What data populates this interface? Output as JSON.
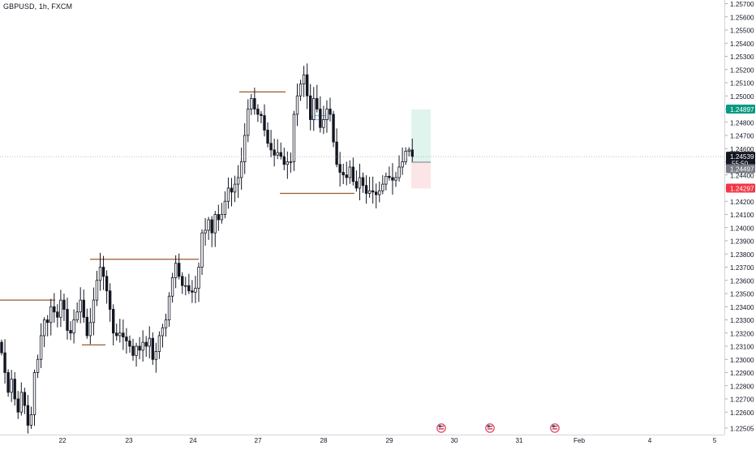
{
  "symbol": {
    "ticker": "GBPUSD",
    "interval": "1h",
    "exchange": "FXCM"
  },
  "price_axis": {
    "ticks": [
      "1.25700",
      "1.25600",
      "1.25500",
      "1.25400",
      "1.25300",
      "1.25200",
      "1.25100",
      "1.25000",
      "1.24900",
      "1.24800",
      "1.24700",
      "1.24600",
      "1.24500",
      "1.24400",
      "1.24300",
      "1.24200",
      "1.24100",
      "1.24000",
      "1.23900",
      "1.23800",
      "1.23700",
      "1.23600",
      "1.23500",
      "1.23400",
      "1.23300",
      "1.23200",
      "1.23100",
      "1.23000",
      "1.22900",
      "1.22800",
      "1.22700",
      "1.22600",
      "1.22505"
    ],
    "labels": {
      "target": {
        "text": "1.24897",
        "value": 1.24897,
        "color": "#089981"
      },
      "current": {
        "text": "1.24539",
        "value": 1.24539,
        "color": "#131722"
      },
      "countdown": {
        "text": "55:50"
      },
      "entry": {
        "text": "1.24497",
        "value": 1.24497,
        "color": "#787b86"
      },
      "stop": {
        "text": "1.24297",
        "value": 1.24297,
        "color": "#f23645"
      }
    }
  },
  "time_axis": {
    "labels": [
      "22",
      "23",
      "24",
      "27",
      "28",
      "29",
      "30",
      "31",
      "Feb",
      "4",
      "5"
    ]
  },
  "events": {
    "flag": "us-flag-icon"
  },
  "colors": {
    "up": "#ffffff",
    "down": "#131722",
    "outline": "#131722",
    "levels": "#9c5a2f",
    "profit_zone": "#d5f0e8",
    "loss_zone": "#fbe0e3"
  },
  "chart_data": {
    "type": "candlestick",
    "symbol": "GBPUSD",
    "interval": "1h",
    "ylim": [
      1.2245,
      1.2572
    ],
    "x_axis_labels": [
      "22",
      "23",
      "24",
      "27",
      "28",
      "29",
      "30",
      "31",
      "Feb",
      "4",
      "5"
    ],
    "key_levels": [
      {
        "price": 1.2345,
        "from_label": "start",
        "to_label": "22"
      },
      {
        "price": 1.2376,
        "from_label": "22",
        "to_label": "24"
      },
      {
        "price": 1.2311,
        "from_label": "22",
        "to_label": "23"
      },
      {
        "price": 1.2503,
        "from_label": "24",
        "to_label": "27"
      },
      {
        "price": 1.2426,
        "from_label": "27",
        "to_label": "29"
      }
    ],
    "position": {
      "type": "long",
      "entry": 1.24497,
      "target": 1.24897,
      "stop": 1.24297
    },
    "last_price": 1.24539,
    "closes": [
      1.2305,
      1.229,
      1.2275,
      1.2285,
      1.227,
      1.226,
      1.2275,
      1.2265,
      1.225,
      1.2258,
      1.229,
      1.23,
      1.2318,
      1.233,
      1.2328,
      1.234,
      1.2336,
      1.2332,
      1.2345,
      1.2338,
      1.2322,
      1.232,
      1.233,
      1.2336,
      1.2345,
      1.2332,
      1.2318,
      1.2328,
      1.2345,
      1.236,
      1.237,
      1.2363,
      1.2352,
      1.2338,
      1.232,
      1.2318,
      1.232,
      1.2317,
      1.2314,
      1.231,
      1.2303,
      1.231,
      1.2307,
      1.2313,
      1.231,
      1.2316,
      1.23,
      1.2306,
      1.2318,
      1.2324,
      1.233,
      1.2348,
      1.2362,
      1.2373,
      1.2363,
      1.2356,
      1.2356,
      1.2352,
      1.2351,
      1.2354,
      1.237,
      1.2396,
      1.2398,
      1.2406,
      1.2396,
      1.241,
      1.2406,
      1.241,
      1.242,
      1.243,
      1.2427,
      1.2433,
      1.2438,
      1.245,
      1.247,
      1.249,
      1.2498,
      1.249,
      1.2486,
      1.2485,
      1.2474,
      1.2464,
      1.2459,
      1.2455,
      1.2457,
      1.2454,
      1.2448,
      1.245,
      1.245,
      1.2486,
      1.25,
      1.2509,
      1.2516,
      1.25,
      1.2482,
      1.2498,
      1.249,
      1.2476,
      1.2482,
      1.249,
      1.2486,
      1.2465,
      1.2448,
      1.2442,
      1.244,
      1.2438,
      1.2446,
      1.2435,
      1.243,
      1.2438,
      1.2432,
      1.2426,
      1.2428,
      1.2427,
      1.2425,
      1.2428,
      1.2433,
      1.2439,
      1.2438,
      1.2436,
      1.2438,
      1.2446,
      1.245,
      1.2458,
      1.2459,
      1.2454
    ]
  }
}
